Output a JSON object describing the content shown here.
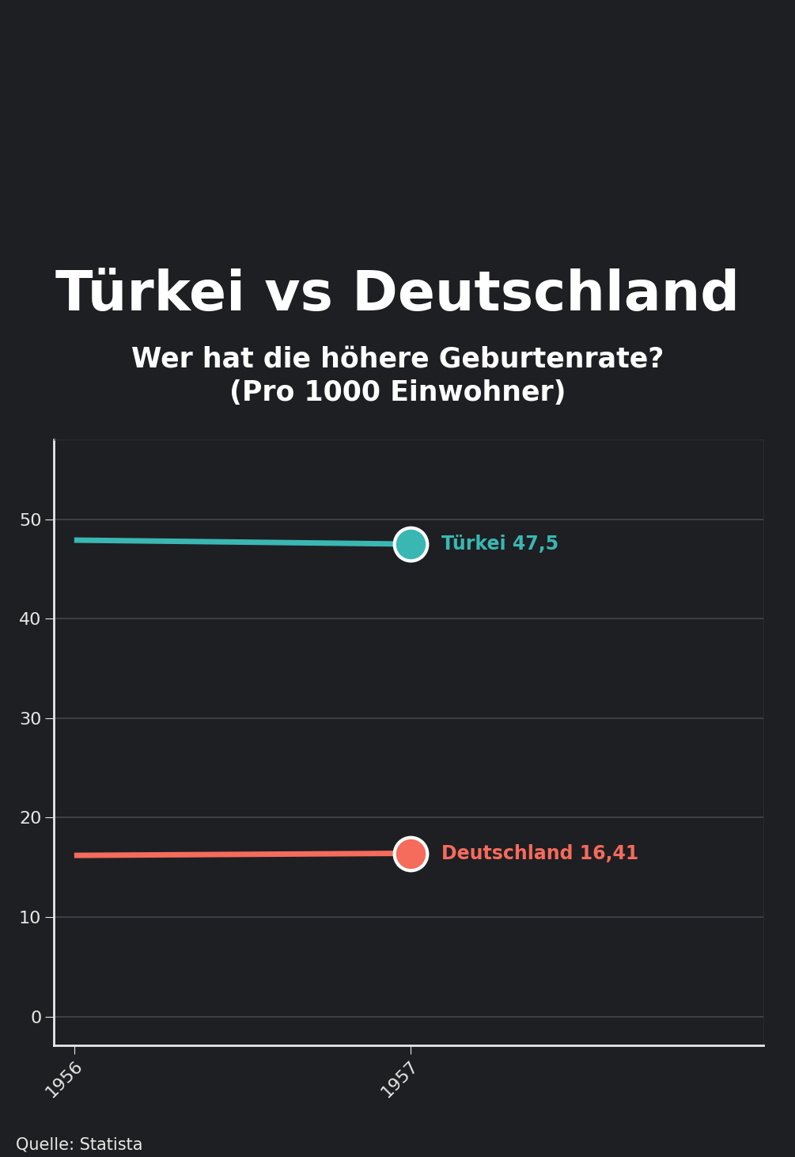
{
  "chart_data": {
    "type": "line",
    "title": "Türkei vs Deutschland",
    "subtitle": "Wer hat die höhere Geburtenrate?\n(Pro 1000 Einwohner)",
    "source": "Quelle: Statista",
    "x": [
      1956,
      1957
    ],
    "series": [
      {
        "name": "Türkei",
        "color": "#3ab7b3",
        "values": [
          47.9,
          47.5
        ],
        "value_labels": [
          null,
          "Türkei 47,5"
        ],
        "marker": "o"
      },
      {
        "name": "Deutschland",
        "color": "#f56b5c",
        "values": [
          16.2,
          16.41
        ],
        "value_labels": [
          null,
          "Deutschland 16,41"
        ],
        "marker": "o"
      }
    ],
    "xlim": [
      1955.94,
      1958.05
    ],
    "xticks": [
      1956,
      1957
    ],
    "ylim": [
      -2.9,
      58
    ],
    "yticks": [
      0,
      10,
      20,
      30,
      40,
      50
    ],
    "grid": true,
    "data_labels": true
  }
}
